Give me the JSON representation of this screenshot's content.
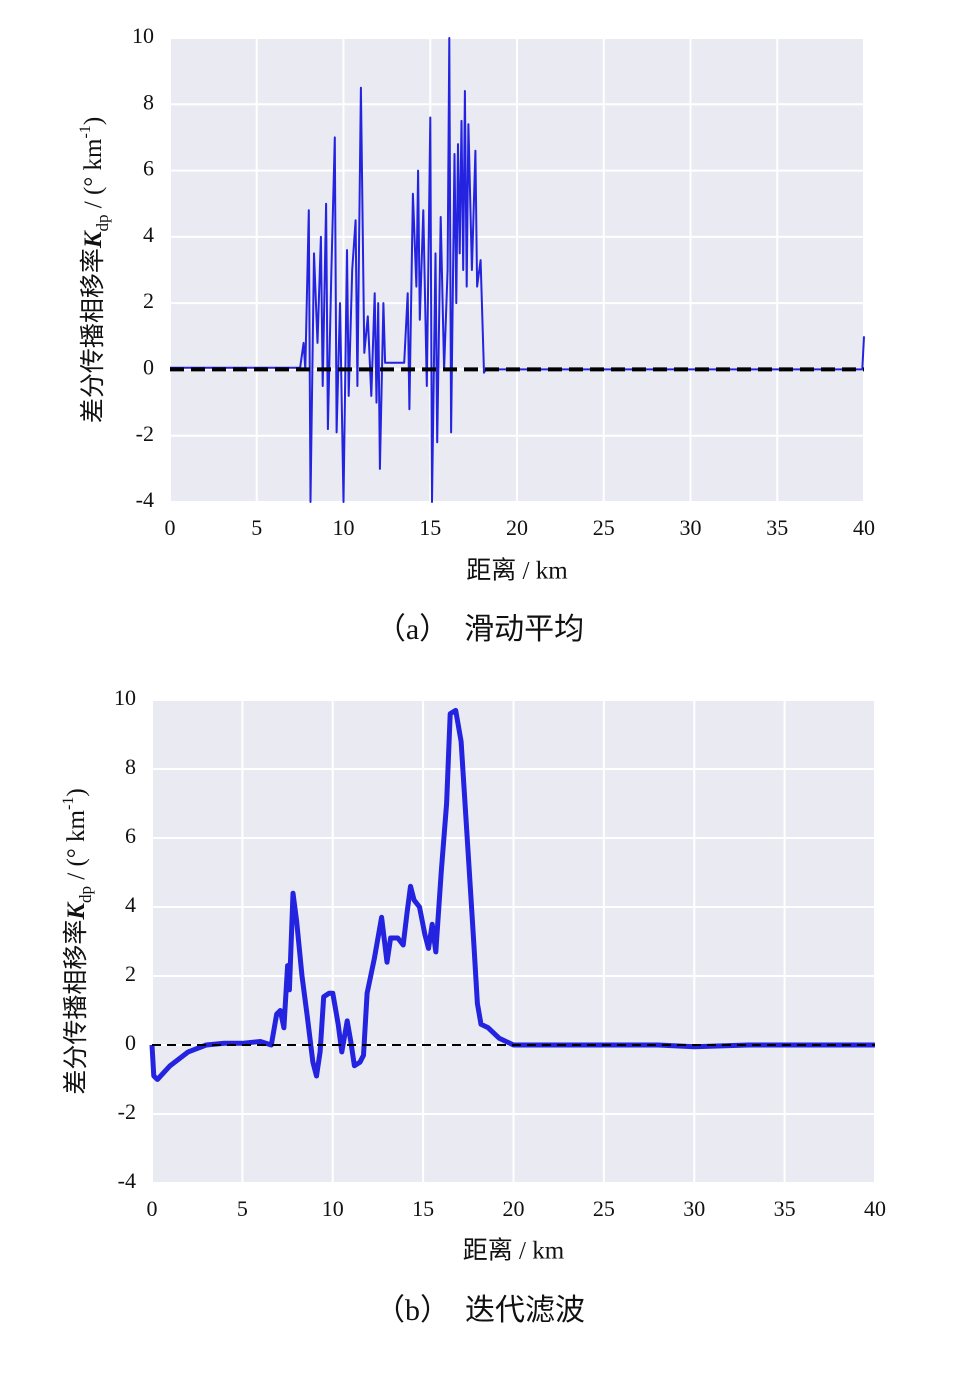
{
  "chart_data": [
    {
      "type": "line",
      "caption": "（a）  滑动平均",
      "xlabel": "距离 / km",
      "ylabel": {
        "prefix": "差分传播相移率",
        "symbol": "K",
        "subscript": "dp",
        "unit": " / (° km",
        "exponent": "-1",
        "close": ")"
      },
      "xlim": [
        0,
        40
      ],
      "xticks": [
        0,
        5,
        10,
        15,
        20,
        25,
        30,
        35,
        40
      ],
      "ylim": [
        -4,
        10
      ],
      "yticks": [
        -4,
        -2,
        0,
        2,
        4,
        6,
        8,
        10
      ],
      "grid": true,
      "reference_line": {
        "y": 0,
        "color": "#000000",
        "style": "dashed"
      },
      "series": [
        {
          "color": "#2323e0",
          "width": 2,
          "x": [
            0,
            7.5,
            7.7,
            7.8,
            8.0,
            8.1,
            8.3,
            8.5,
            8.7,
            8.8,
            9.0,
            9.1,
            9.3,
            9.5,
            9.6,
            9.8,
            10.0,
            10.2,
            10.3,
            10.5,
            10.7,
            10.8,
            11.0,
            11.2,
            11.4,
            11.6,
            11.8,
            11.9,
            12.0,
            12.1,
            12.3,
            12.4,
            13.5,
            13.7,
            13.8,
            14.0,
            14.2,
            14.3,
            14.4,
            14.6,
            14.8,
            15.0,
            15.1,
            15.3,
            15.4,
            15.6,
            15.8,
            16.0,
            16.1,
            16.2,
            16.4,
            16.5,
            16.6,
            16.7,
            16.8,
            16.9,
            17.0,
            17.1,
            17.2,
            17.4,
            17.6,
            17.7,
            17.9,
            18.1,
            18.2,
            39.9,
            40
          ],
          "values": [
            0.05,
            0.05,
            0.8,
            0,
            4.8,
            -4,
            3.5,
            0.8,
            4,
            -0.5,
            5,
            -1.8,
            3,
            7,
            -1.9,
            2,
            -4,
            3.6,
            -0.8,
            3,
            4.5,
            -0.5,
            8.5,
            0.5,
            1.6,
            -0.8,
            2.3,
            -1,
            2,
            -3,
            2,
            0.2,
            0.2,
            2.3,
            -1.2,
            5.3,
            2.5,
            6,
            1.5,
            4.8,
            -0.5,
            7.6,
            -4,
            3.5,
            -2.2,
            4.6,
            0,
            3,
            10,
            -1.9,
            6.5,
            2,
            6.8,
            3.5,
            7.5,
            3,
            8.4,
            2.5,
            7.4,
            3,
            6.6,
            2.5,
            3.3,
            -0.1,
            0,
            0,
            1
          ]
        }
      ]
    },
    {
      "type": "line",
      "caption": "（b）  迭代滤波",
      "xlabel": "距离 / km",
      "ylabel": {
        "prefix": "差分传播相移率",
        "symbol": "K",
        "subscript": "dp",
        "unit": " / (° km",
        "exponent": "-1",
        "close": ")"
      },
      "xlim": [
        0,
        40
      ],
      "xticks": [
        0,
        5,
        10,
        15,
        20,
        25,
        30,
        35,
        40
      ],
      "ylim": [
        -4,
        10
      ],
      "yticks": [
        -4,
        -2,
        0,
        2,
        4,
        6,
        8,
        10
      ],
      "grid": true,
      "reference_line": {
        "y": 0,
        "color": "#000000",
        "style": "dashed"
      },
      "series": [
        {
          "color": "#2323e0",
          "width": 5,
          "x": [
            0,
            0.1,
            0.3,
            1,
            2,
            3,
            4,
            5,
            6,
            6.6,
            6.9,
            7.1,
            7.3,
            7.5,
            7.6,
            7.8,
            8,
            8.3,
            8.6,
            8.9,
            9.1,
            9.3,
            9.5,
            9.8,
            10,
            10.3,
            10.5,
            10.8,
            11,
            11.2,
            11.5,
            11.7,
            11.9,
            12.3,
            12.7,
            13,
            13.2,
            13.6,
            13.9,
            14.1,
            14.3,
            14.5,
            14.8,
            15.1,
            15.3,
            15.5,
            15.7,
            16,
            16.3,
            16.5,
            16.8,
            17.1,
            17.5,
            17.8,
            18,
            18.2,
            18.6,
            19.2,
            20,
            22,
            25,
            28,
            30,
            33,
            35,
            38,
            40
          ],
          "values": [
            0,
            -0.9,
            -1,
            -0.6,
            -0.2,
            0,
            0.05,
            0.05,
            0.1,
            0,
            0.9,
            1,
            0.5,
            2.3,
            1.6,
            4.4,
            3.6,
            2,
            0.8,
            -0.5,
            -0.9,
            -0.2,
            1.4,
            1.5,
            1.5,
            0.6,
            -0.2,
            0.7,
            0.1,
            -0.6,
            -0.5,
            -0.3,
            1.5,
            2.5,
            3.7,
            2.4,
            3.1,
            3.1,
            2.9,
            3.8,
            4.6,
            4.2,
            4,
            3.2,
            2.8,
            3.5,
            2.7,
            5,
            7,
            9.6,
            9.7,
            8.8,
            5.5,
            3,
            1.2,
            0.6,
            0.5,
            0.2,
            0,
            0,
            0,
            0,
            -0.05,
            0,
            0,
            0,
            0
          ]
        }
      ]
    }
  ]
}
